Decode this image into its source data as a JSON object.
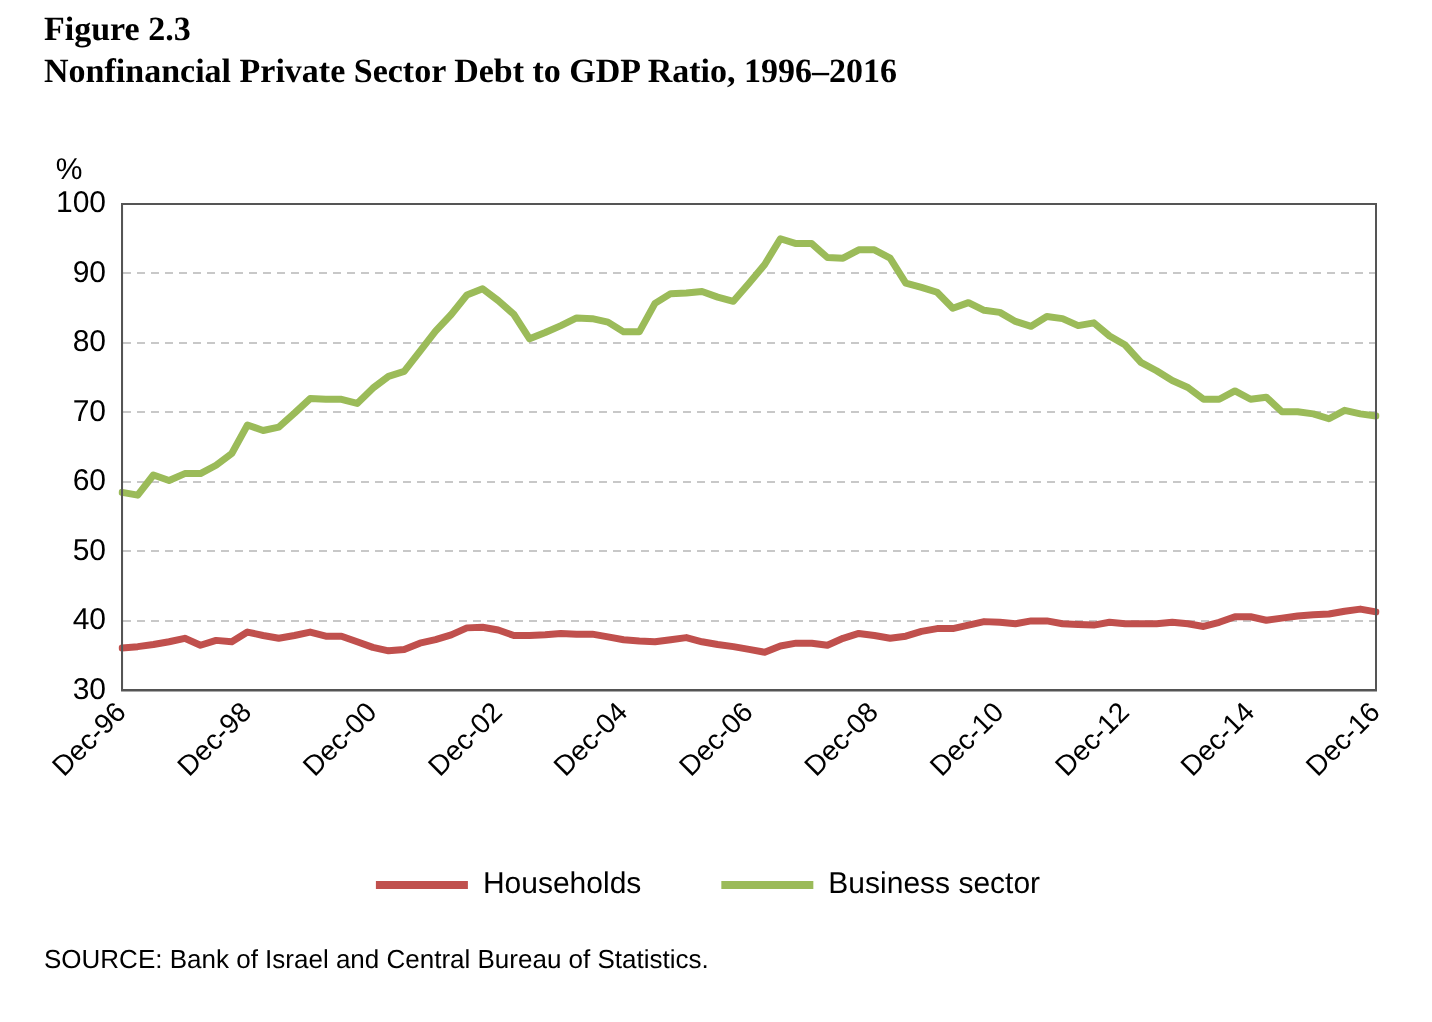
{
  "chart_data": {
    "type": "line",
    "title": "Figure 2.3",
    "subtitle": "Nonfinancial Private Sector Debt to GDP Ratio, 1996–2016",
    "ylabel": "%",
    "categories": [
      "Dec-96",
      null,
      null,
      null,
      null,
      null,
      null,
      null,
      "Dec-98",
      null,
      null,
      null,
      null,
      null,
      null,
      null,
      "Dec-00",
      null,
      null,
      null,
      null,
      null,
      null,
      null,
      "Dec-02",
      null,
      null,
      null,
      null,
      null,
      null,
      null,
      "Dec-04",
      null,
      null,
      null,
      null,
      null,
      null,
      null,
      "Dec-06",
      null,
      null,
      null,
      null,
      null,
      null,
      null,
      "Dec-08",
      null,
      null,
      null,
      null,
      null,
      null,
      null,
      "Dec-10",
      null,
      null,
      null,
      null,
      null,
      null,
      null,
      "Dec-12",
      null,
      null,
      null,
      null,
      null,
      null,
      null,
      "Dec-14",
      null,
      null,
      null,
      null,
      null,
      null,
      null,
      "Dec-16"
    ],
    "series": [
      {
        "name": "Households",
        "color": "#c0504d",
        "values": [
          36.1,
          36.3,
          36.6,
          37.0,
          37.5,
          36.5,
          37.2,
          37.0,
          38.4,
          37.9,
          37.5,
          37.9,
          38.4,
          37.8,
          37.8,
          37.0,
          36.2,
          35.7,
          35.9,
          36.8,
          37.3,
          38.0,
          39.0,
          39.1,
          38.7,
          37.9,
          37.9,
          38.0,
          38.2,
          38.1,
          38.1,
          37.7,
          37.3,
          37.1,
          37.0,
          37.3,
          37.6,
          37.0,
          36.6,
          36.3,
          35.9,
          35.5,
          36.4,
          36.8,
          36.8,
          36.5,
          37.5,
          38.2,
          37.9,
          37.5,
          37.8,
          38.5,
          38.9,
          38.9,
          39.4,
          39.9,
          39.8,
          39.6,
          40.0,
          40.0,
          39.6,
          39.5,
          39.4,
          39.8,
          39.6,
          39.6,
          39.6,
          39.8,
          39.6,
          39.2,
          39.8,
          40.6,
          40.6,
          40.1,
          40.4,
          40.7,
          40.9,
          41.0,
          41.4,
          41.7,
          41.3
        ]
      },
      {
        "name": "Business sector",
        "color": "#9bbb59",
        "values": [
          58.5,
          58.1,
          61.0,
          60.2,
          61.2,
          61.2,
          62.4,
          64.1,
          68.2,
          67.4,
          67.9,
          69.9,
          72.0,
          71.9,
          71.9,
          71.3,
          73.5,
          75.2,
          75.9,
          78.8,
          81.7,
          84.1,
          86.9,
          87.8,
          86.1,
          84.1,
          80.6,
          81.5,
          82.5,
          83.6,
          83.5,
          83.0,
          81.6,
          81.6,
          85.7,
          87.1,
          87.2,
          87.4,
          86.6,
          86.0,
          88.6,
          91.3,
          95.0,
          94.3,
          94.3,
          92.3,
          92.2,
          93.4,
          93.4,
          92.2,
          88.6,
          88.0,
          87.3,
          85.0,
          85.8,
          84.7,
          84.4,
          83.1,
          82.4,
          83.8,
          83.5,
          82.5,
          82.9,
          81.0,
          79.7,
          77.2,
          76.0,
          74.6,
          73.6,
          71.9,
          71.9,
          73.1,
          71.9,
          72.2,
          70.1,
          70.1,
          69.8,
          69.1,
          70.3,
          69.8,
          69.5
        ]
      }
    ],
    "ylim": [
      30,
      100
    ],
    "yticks": [
      30,
      40,
      50,
      60,
      70,
      80,
      90,
      100
    ],
    "grid": "y",
    "legend": "bottom",
    "marker": "none",
    "line_style": "solid",
    "annotations": [
      "SOURCE: Bank of Israel and Central Bureau of Statistics."
    ]
  }
}
